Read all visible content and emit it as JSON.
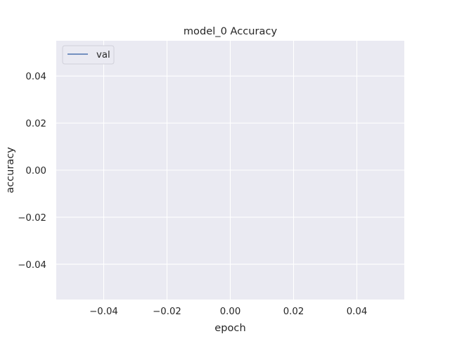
{
  "chart_data": {
    "type": "line",
    "title": "model_0 Accuracy",
    "xlabel": "epoch",
    "ylabel": "accuracy",
    "xlim": [
      -0.055,
      0.055
    ],
    "ylim": [
      -0.055,
      0.055
    ],
    "xticks": [
      -0.04,
      -0.02,
      0.0,
      0.02,
      0.04
    ],
    "yticks": [
      -0.04,
      -0.02,
      0.0,
      0.02,
      0.04
    ],
    "xtick_labels": [
      "−0.04",
      "−0.02",
      "0.00",
      "0.02",
      "0.04"
    ],
    "ytick_labels": [
      "−0.04",
      "−0.02",
      "0.00",
      "0.02",
      "0.04"
    ],
    "grid": true,
    "legend_position": "top-left",
    "series": [
      {
        "name": "val",
        "x": [],
        "y": [],
        "color": "#4c72b0"
      }
    ],
    "colors": {
      "plot_background": "#eaeaf2",
      "grid": "#ffffff"
    }
  }
}
